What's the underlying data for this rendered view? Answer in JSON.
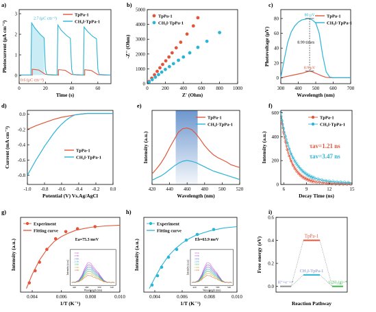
{
  "colors": {
    "red": "#e2553a",
    "cyan": "#2ab4d6",
    "gray": "#8c8c8c"
  },
  "chart_data": [
    {
      "panel": "a)",
      "type": "line",
      "xlabel": "Time (s)",
      "ylabel": "Photocurrent (μA cm⁻²)",
      "xlim": [
        0,
        70
      ],
      "ylim": [
        -0.4,
        3.2
      ],
      "xticks": [
        "0",
        "20",
        "40",
        "60"
      ],
      "yticks": [
        "0",
        "1",
        "2",
        "3"
      ],
      "legend": [
        "TpPa-1",
        "CH₃I-TpPa-1"
      ],
      "legend_position": "top-right",
      "annotations": [
        "2.7 (μC cm⁻²)",
        "0.6 (μC cm⁻²)"
      ],
      "series": [
        {
          "name": "TpPa-1",
          "x": [
            0,
            5,
            10,
            10,
            15,
            20,
            25,
            30,
            30,
            35,
            40,
            45,
            50,
            50,
            55,
            60,
            65,
            67,
            70
          ],
          "y": [
            0.02,
            0.02,
            0.02,
            0.3,
            0.26,
            0.05,
            0.02,
            0.02,
            0.28,
            0.25,
            0.05,
            0.02,
            0.02,
            0.28,
            0.24,
            0.04,
            0.02,
            0.02,
            0.02
          ]
        },
        {
          "name": "CH₃I-TpPa-1",
          "x": [
            0,
            9,
            9.5,
            12,
            16,
            19,
            20,
            21,
            28,
            29,
            29.5,
            32,
            36,
            39,
            40,
            41,
            48,
            49,
            49.5,
            52,
            56,
            59,
            60,
            61,
            68,
            70
          ],
          "y": [
            0.02,
            0.02,
            2.55,
            2.3,
            2.0,
            1.82,
            0.3,
            0.05,
            0.02,
            0.02,
            2.45,
            2.2,
            1.95,
            1.8,
            0.3,
            0.05,
            0.02,
            0.02,
            2.35,
            2.15,
            1.9,
            1.78,
            0.3,
            0.05,
            0.02,
            0.02
          ]
        }
      ]
    },
    {
      "panel": "b)",
      "type": "scatter",
      "xlabel": "Z' (Ohm)",
      "ylabel": "-Z'' (Ohm)",
      "xlim": [
        0,
        1000
      ],
      "ylim": [
        0,
        5000
      ],
      "xticks": [
        "0",
        "200",
        "400",
        "600",
        "800",
        "1000"
      ],
      "yticks": [
        "0",
        "1000",
        "2000",
        "3000",
        "4000",
        "5000"
      ],
      "legend": [
        "TpPa-1",
        "CH₃I-TpPa-1"
      ],
      "legend_position": "top-left",
      "series": [
        {
          "name": "TpPa-1",
          "x": [
            20,
            50,
            80,
            110,
            140,
            170,
            205,
            240,
            275,
            320,
            370,
            440,
            510,
            560
          ],
          "y": [
            150,
            370,
            600,
            830,
            1070,
            1300,
            1540,
            1800,
            2080,
            2420,
            2800,
            3350,
            3900,
            4450
          ]
        },
        {
          "name": "CH₃I-TpPa-1",
          "x": [
            20,
            55,
            90,
            125,
            160,
            200,
            245,
            290,
            345,
            400,
            470,
            560,
            660,
            800
          ],
          "y": [
            110,
            270,
            440,
            610,
            780,
            960,
            1150,
            1350,
            1580,
            1800,
            2080,
            2450,
            2860,
            3450
          ]
        }
      ]
    },
    {
      "panel": "c)",
      "type": "line",
      "xlabel": "Wavelength (nm)",
      "ylabel": "Photovoltage (μV)",
      "xlim": [
        300,
        700
      ],
      "ylim": [
        -8,
        92
      ],
      "xticks": [
        "300",
        "400",
        "500",
        "600",
        "700"
      ],
      "yticks": [
        "0",
        "20",
        "40",
        "60",
        "80"
      ],
      "legend": [
        "TpPa-1",
        "CH₃I-TpPa-1"
      ],
      "legend_position": "top-right",
      "annotations": [
        "80 μV",
        "8.99 times",
        "8.9 μV"
      ],
      "series": [
        {
          "name": "TpPa-1",
          "x": [
            300,
            340,
            380,
            420,
            450,
            465,
            480,
            510,
            540,
            560,
            600,
            700
          ],
          "y": [
            0,
            2,
            4,
            6,
            8,
            8.9,
            8,
            5,
            2,
            0.5,
            0,
            0
          ]
        },
        {
          "name": "CH₃I-TpPa-1",
          "x": [
            300,
            320,
            340,
            360,
            380,
            400,
            420,
            440,
            455,
            465,
            480,
            500,
            520,
            540,
            560,
            580,
            600,
            700
          ],
          "y": [
            0,
            25,
            48,
            62,
            70,
            75,
            78,
            79,
            80,
            79.5,
            78,
            74,
            60,
            30,
            8,
            1,
            0,
            0
          ]
        }
      ]
    },
    {
      "panel": "d)",
      "type": "line",
      "xlabel": "Potential (V) Vs.Ag/AgCl",
      "ylabel": "Current (mA cm⁻²)",
      "xlim": [
        -1.0,
        0.0
      ],
      "ylim": [
        -0.92,
        0.05
      ],
      "xticks": [
        "-1.0",
        "-0.8",
        "-0.6",
        "-0.4",
        "-0.2",
        "0.0"
      ],
      "yticks": [
        "0.0",
        "-0.2",
        "-0.4",
        "-0.6",
        "-0.8"
      ],
      "legend": [
        "TpPa-1",
        "CH₃I-TpPa-1"
      ],
      "legend_position": "bottom-right",
      "series": [
        {
          "name": "TpPa-1",
          "x": [
            -1.0,
            -0.9,
            -0.8,
            -0.7,
            -0.6,
            -0.5,
            -0.4,
            -0.3,
            -0.2,
            -0.1,
            0.0
          ],
          "y": [
            -0.2,
            -0.15,
            -0.11,
            -0.07,
            -0.04,
            -0.02,
            0.0,
            0.01,
            0.01,
            0.01,
            0.01
          ]
        },
        {
          "name": "CH₃I-TpPa-1",
          "x": [
            -1.0,
            -0.95,
            -0.9,
            -0.85,
            -0.8,
            -0.75,
            -0.7,
            -0.65,
            -0.6,
            -0.55,
            -0.5,
            -0.45,
            -0.4,
            -0.3,
            -0.2,
            -0.1,
            0.0
          ],
          "y": [
            -0.8,
            -0.7,
            -0.6,
            -0.51,
            -0.42,
            -0.34,
            -0.26,
            -0.19,
            -0.13,
            -0.08,
            -0.04,
            -0.01,
            0.0,
            0.01,
            0.01,
            0.01,
            0.01
          ]
        }
      ]
    },
    {
      "panel": "e)",
      "type": "line",
      "xlabel": "Wavelength (nm)",
      "ylabel": "Intensity (a.u.)",
      "xlim": [
        420,
        520
      ],
      "ylim": [
        0,
        1.05
      ],
      "xticks": [
        "420",
        "440",
        "460",
        "480",
        "500",
        "520"
      ],
      "highlight_range": [
        447,
        472
      ],
      "legend": [
        "TpPa-1",
        "CH₃I-TpPa-1"
      ],
      "legend_position": "top-right",
      "series": [
        {
          "name": "TpPa-1",
          "x": [
            420,
            425,
            430,
            435,
            440,
            445,
            450,
            455,
            460,
            465,
            470,
            475,
            480,
            485,
            490,
            495,
            500,
            505,
            510,
            515,
            520
          ],
          "y": [
            0.15,
            0.22,
            0.3,
            0.4,
            0.52,
            0.63,
            0.74,
            0.79,
            0.8,
            0.78,
            0.72,
            0.64,
            0.55,
            0.48,
            0.42,
            0.38,
            0.35,
            0.32,
            0.28,
            0.26,
            0.24
          ]
        },
        {
          "name": "CH₃I-TpPa-1",
          "x": [
            420,
            425,
            430,
            435,
            440,
            445,
            450,
            455,
            460,
            465,
            470,
            475,
            480,
            485,
            490,
            495,
            500,
            505,
            510,
            515,
            520
          ],
          "y": [
            0.06,
            0.09,
            0.12,
            0.16,
            0.21,
            0.26,
            0.3,
            0.33,
            0.34,
            0.33,
            0.31,
            0.28,
            0.25,
            0.22,
            0.19,
            0.17,
            0.15,
            0.13,
            0.11,
            0.09,
            0.07
          ]
        }
      ]
    },
    {
      "panel": "f)",
      "type": "scatter",
      "xlabel": "Decay Time (ns)",
      "ylabel": "Intensity (a.u.)",
      "xlim": [
        5.6,
        15
      ],
      "ylim": [
        0,
        620
      ],
      "xticks": [
        "6",
        "9",
        "12",
        "15"
      ],
      "yticks": [
        "0",
        "200",
        "400",
        "600"
      ],
      "legend": [
        "TpPa-1",
        "CH₃I-TpPa-1"
      ],
      "legend_position": "top-right",
      "annotations": [
        "τav=1.21 ns",
        "τav=3.47 ns"
      ],
      "series": [
        {
          "name": "TpPa-1",
          "x": [
            5.6,
            6.0,
            6.5,
            7.0,
            7.5,
            8.0,
            8.5,
            9.0,
            9.5,
            10,
            11,
            12,
            13,
            14,
            15
          ],
          "y": [
            600,
            420,
            280,
            190,
            130,
            90,
            62,
            45,
            32,
            24,
            15,
            10,
            7,
            5,
            4
          ]
        },
        {
          "name": "CH₃I-TpPa-1",
          "x": [
            5.6,
            6.0,
            6.5,
            7.0,
            7.5,
            8.0,
            8.5,
            9.0,
            9.5,
            10,
            11,
            12,
            13,
            14,
            15
          ],
          "y": [
            600,
            460,
            340,
            250,
            190,
            145,
            110,
            85,
            67,
            54,
            36,
            26,
            20,
            16,
            13
          ]
        }
      ]
    },
    {
      "panel": "g)",
      "type": "scatter",
      "xlabel": "1/T (K⁻¹)",
      "ylabel": "Intensity (a.u.)",
      "xlim": [
        0.0032,
        0.01
      ],
      "xticks": [
        "0.004",
        "0.006",
        "0.008",
        "0.010"
      ],
      "legend": [
        "Experiment",
        "Fitting curve"
      ],
      "legend_position": "top-left",
      "annotations": [
        "Ea=75.3 meV"
      ],
      "inset_ticks": [
        "420",
        "460",
        "500",
        "540"
      ],
      "inset_xlabel": "Wavelength (nm)",
      "inset_ylabel": "Intensity (a.u.)",
      "inset_legend": [
        "300K",
        "270K",
        "240K",
        "210K",
        "180K",
        "150K",
        "120K"
      ],
      "series": [
        {
          "name": "Experiment",
          "x": [
            0.0038,
            0.0042,
            0.0045,
            0.005,
            0.0056,
            0.0063,
            0.0071,
            0.0083
          ],
          "y": [
            0.08,
            0.25,
            0.37,
            0.55,
            0.7,
            0.8,
            0.84,
            0.87
          ]
        },
        {
          "name": "Fitting curve",
          "x": [
            0.0036,
            0.004,
            0.0045,
            0.005,
            0.0055,
            0.006,
            0.0065,
            0.007,
            0.008,
            0.009,
            0.01
          ],
          "y": [
            0.0,
            0.2,
            0.4,
            0.55,
            0.66,
            0.73,
            0.78,
            0.82,
            0.86,
            0.88,
            0.89
          ]
        }
      ]
    },
    {
      "panel": "h)",
      "type": "scatter",
      "xlabel": "1/T (K⁻¹)",
      "ylabel": "Intensity (a.u.)",
      "xlim": [
        0.0032,
        0.01
      ],
      "xticks": [
        "0.004",
        "0.006",
        "0.008",
        "0.010"
      ],
      "legend": [
        "Experiment",
        "Fitting curve"
      ],
      "legend_position": "top-left",
      "annotations": [
        "Eb=63.9 meV"
      ],
      "inset_ticks": [
        "420",
        "460",
        "500",
        "540"
      ],
      "inset_xlabel": "Wavelength (nm)",
      "inset_ylabel": "Intensity (a.u.)",
      "inset_legend": [
        "300K",
        "270K",
        "240K",
        "210K",
        "180K",
        "150K",
        "120K"
      ],
      "series": [
        {
          "name": "Experiment",
          "x": [
            0.0038,
            0.0042,
            0.0045,
            0.005,
            0.0056,
            0.0063,
            0.0071,
            0.0083
          ],
          "y": [
            0.05,
            0.18,
            0.3,
            0.44,
            0.55,
            0.68,
            0.76,
            0.83
          ]
        },
        {
          "name": "Fitting curve",
          "x": [
            0.0036,
            0.004,
            0.0045,
            0.005,
            0.0055,
            0.006,
            0.0065,
            0.007,
            0.008,
            0.009,
            0.01
          ],
          "y": [
            0.0,
            0.15,
            0.32,
            0.46,
            0.56,
            0.64,
            0.7,
            0.75,
            0.81,
            0.85,
            0.87
          ]
        }
      ]
    },
    {
      "panel": "i)",
      "type": "line",
      "xlabel": "Reaction Pathway",
      "ylabel": "Free energy (eV)",
      "ylim": [
        -0.05,
        0.6
      ],
      "yticks": [
        "0.0",
        "0.2",
        "0.4",
        "0.6"
      ],
      "levels": [
        {
          "label": "H⁺+e⁻+*",
          "value": 0.0
        },
        {
          "label": "TpPa-1",
          "value": 0.4
        },
        {
          "label": "CH₃I-TpPa-1",
          "value": 0.1
        },
        {
          "label": "1/2H₂(g)+*",
          "value": 0.0
        }
      ]
    }
  ]
}
